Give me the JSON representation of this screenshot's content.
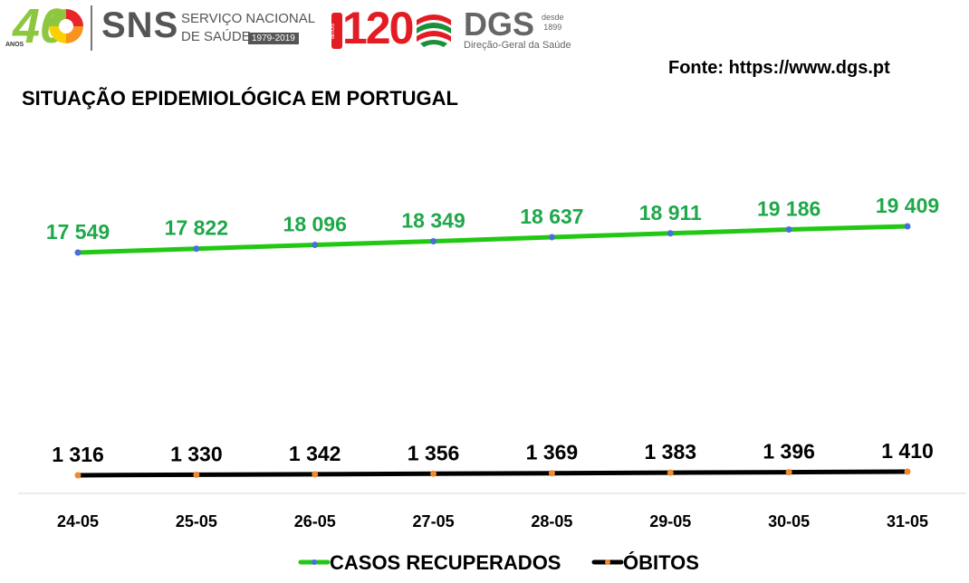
{
  "header": {
    "logo_40": {
      "number": "40",
      "small_text": "ANOS"
    },
    "sns": {
      "abbr": "SNS",
      "line1": "SERVIÇO NACIONAL",
      "line2": "DE SAÚDE",
      "years": "1979-2019"
    },
    "dgs": {
      "anos_tag": "anos",
      "number": "120",
      "abbr": "DGS",
      "desde": "desde",
      "year": "1899",
      "subtitle": "Direção-Geral da Saúde"
    }
  },
  "source": "Fonte: https://www.dgs.pt",
  "title": "SITUAÇÃO EPIDEMIOLÓGICA EM PORTUGAL",
  "colors": {
    "recovered": "#22c814",
    "recovered_label": "#1fa84a",
    "deaths": "#000000",
    "recovered_marker": "#4a6fd8",
    "deaths_marker": "#f08a2a"
  },
  "chart_data": {
    "type": "line",
    "categories": [
      "24-05",
      "25-05",
      "26-05",
      "27-05",
      "28-05",
      "29-05",
      "30-05",
      "31-05"
    ],
    "series": [
      {
        "name": "CASOS RECUPERADOS",
        "values": [
          17549,
          17822,
          18096,
          18349,
          18637,
          18911,
          19186,
          19409
        ],
        "labels": [
          "17 549",
          "17 822",
          "18 096",
          "18 349",
          "18 637",
          "18 911",
          "19 186",
          "19 409"
        ]
      },
      {
        "name": "ÓBITOS",
        "values": [
          1316,
          1330,
          1342,
          1356,
          1369,
          1383,
          1396,
          1410
        ],
        "labels": [
          "1 316",
          "1 330",
          "1 342",
          "1 356",
          "1 369",
          "1 383",
          "1 396",
          "1 410"
        ]
      }
    ],
    "legend_position": "bottom",
    "grid": false
  }
}
